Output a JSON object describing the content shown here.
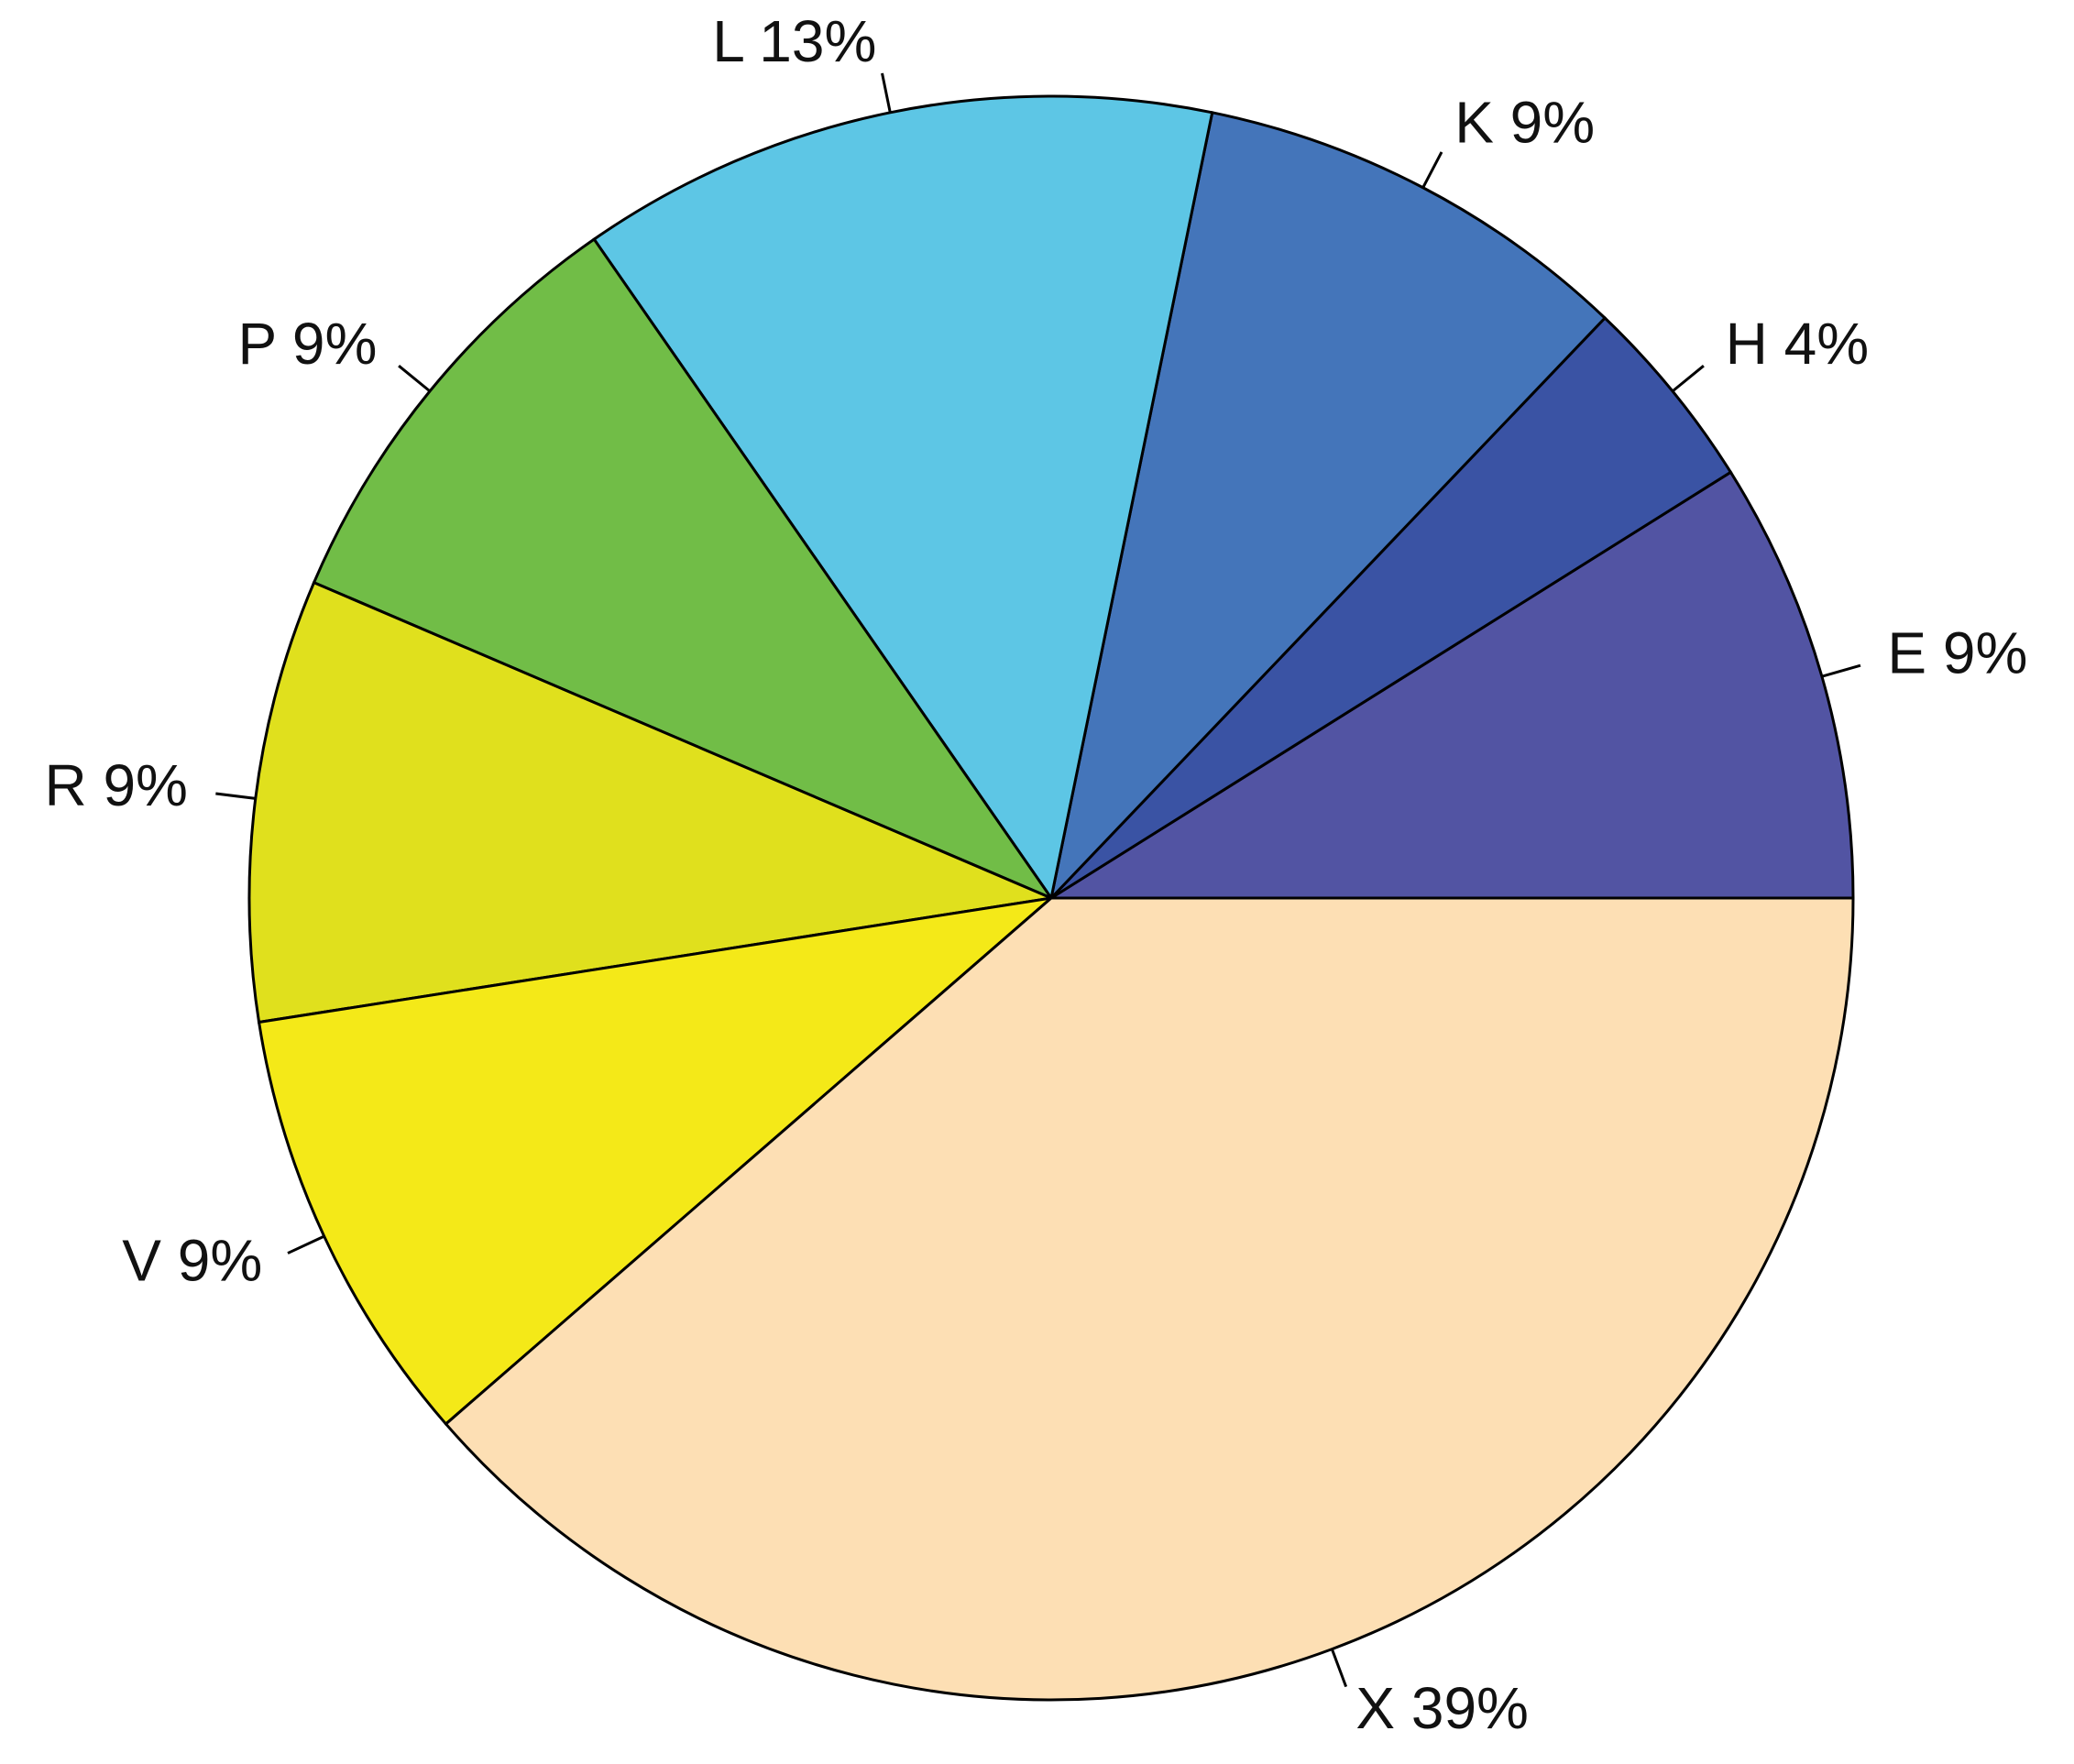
{
  "chart_data": {
    "type": "pie",
    "categories": [
      "E 9%",
      "H 4%",
      "K 9%",
      "L 13%",
      "P 9%",
      "R 9%",
      "V 9%",
      "X 39%"
    ],
    "values": [
      9,
      4,
      9,
      13,
      9,
      9,
      9,
      39
    ],
    "colors": [
      "#5254a3",
      "#3a53a4",
      "#4475ba",
      "#5dc6e5",
      "#71bd47",
      "#e0e01d",
      "#f4e918",
      "#fddfb4"
    ],
    "start_angle": 0,
    "direction": "counterclockwise"
  }
}
